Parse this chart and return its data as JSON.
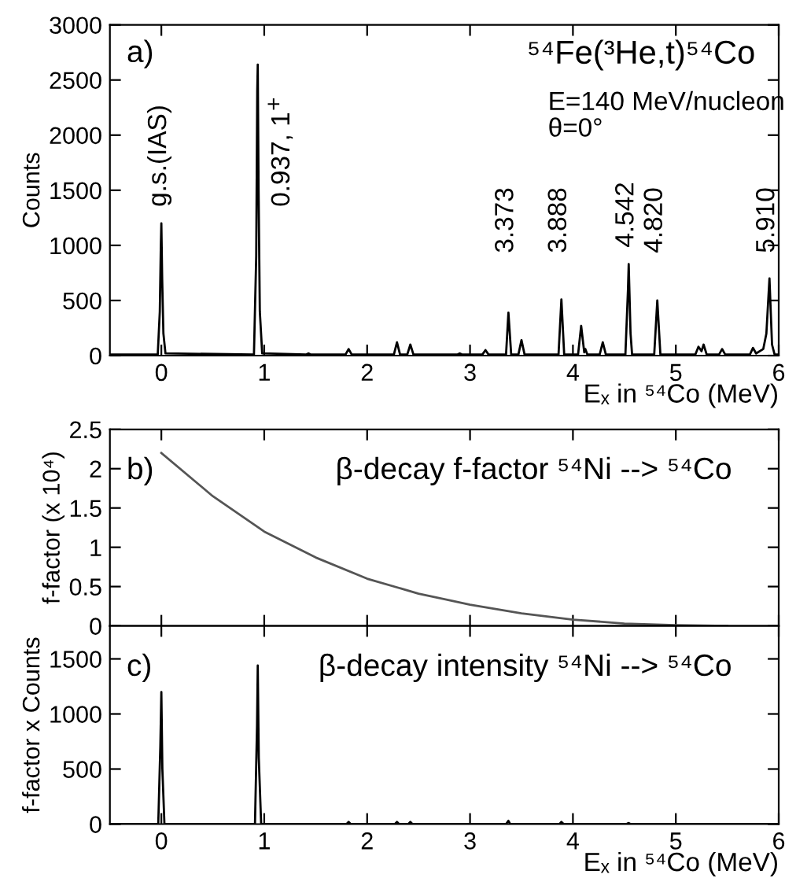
{
  "chart_data": [
    {
      "type": "line",
      "title": "⁵⁴Fe(³He,t)⁵⁴Co",
      "xlabel": "Eₓ in ⁵⁴Co (MeV)",
      "ylabel": "Counts",
      "annotations": [
        "a)",
        "E=140 MeV/nucleon",
        "θ=0°",
        {
          "text": "g.s.(IAS)",
          "x": 0,
          "y": 1200
        },
        {
          "text": "0.937, 1$^{+}$",
          "x": 0.937,
          "y": 2640
        },
        {
          "text": "3.373",
          "x": 3.373,
          "y": 390
        },
        {
          "text": "3.888",
          "x": 3.888,
          "y": 510
        },
        {
          "text": "4.542",
          "x": 4.542,
          "y": 830
        },
        {
          "text": "4.820",
          "x": 4.82,
          "y": 500
        },
        {
          "text": "5.910",
          "x": 5.91,
          "y": 700
        }
      ],
      "x": [
        -0.5,
        -0.035,
        -0.015,
        -0.005,
        0,
        0.008,
        0.02,
        0.04,
        0.9,
        0.922,
        0.932,
        0.937,
        0.945,
        0.957,
        0.98,
        1.41,
        1.43,
        1.45,
        1.79,
        1.82,
        1.85,
        2.26,
        2.29,
        2.32,
        2.39,
        2.42,
        2.45,
        2.88,
        2.9,
        2.92,
        3.12,
        3.15,
        3.18,
        3.35,
        3.373,
        3.4,
        3.47,
        3.5,
        3.53,
        3.86,
        3.888,
        3.915,
        4.05,
        4.08,
        4.11,
        4.12,
        4.14,
        4.26,
        4.29,
        4.32,
        4.51,
        4.535,
        4.542,
        4.56,
        4.575,
        4.79,
        4.82,
        4.85,
        5.19,
        5.22,
        5.25,
        5.27,
        5.3,
        5.42,
        5.45,
        5.48,
        5.72,
        5.75,
        5.78,
        5.85,
        5.88,
        5.91,
        5.935,
        5.96,
        6.0
      ],
      "series": [
        {
          "color": "#000000",
          "values": [
            10,
            10,
            400,
            1000,
            1200,
            700,
            200,
            20,
            10,
            900,
            2400,
            2640,
            1500,
            400,
            20,
            10,
            20,
            10,
            10,
            60,
            10,
            10,
            120,
            10,
            10,
            100,
            10,
            10,
            20,
            10,
            10,
            50,
            10,
            10,
            390,
            10,
            10,
            140,
            10,
            10,
            510,
            10,
            10,
            270,
            30,
            60,
            10,
            10,
            120,
            10,
            10,
            600,
            830,
            200,
            10,
            10,
            500,
            10,
            10,
            80,
            40,
            100,
            10,
            10,
            60,
            10,
            10,
            70,
            20,
            60,
            200,
            700,
            100,
            10,
            10
          ]
        }
      ],
      "xlim": [
        -0.5,
        6
      ],
      "xticks": [
        0,
        1,
        2,
        3,
        4,
        5,
        6
      ],
      "ylim": [
        0,
        3000
      ],
      "yticks": [
        0,
        500,
        1000,
        1500,
        2000,
        2500,
        3000
      ]
    },
    {
      "type": "line",
      "title": "β-decay f-factor ⁵⁴Ni --> ⁵⁴Co",
      "ylabel": "f-factor (x 10⁴)",
      "annotations": [
        "b)"
      ],
      "x": [
        0,
        0.5,
        1,
        1.5,
        2,
        2.5,
        3,
        3.5,
        4,
        4.5,
        5,
        5.5
      ],
      "series": [
        {
          "color": "#555555",
          "values": [
            2.2,
            1.65,
            1.2,
            0.87,
            0.6,
            0.41,
            0.27,
            0.16,
            0.08,
            0.03,
            0.01,
            0
          ]
        }
      ],
      "xlim": [
        -0.5,
        6
      ],
      "xticks": [
        0,
        1,
        2,
        3,
        4,
        5,
        6
      ],
      "ylim": [
        0,
        2.5
      ],
      "yticks": [
        0,
        0.5,
        1,
        1.5,
        2,
        2.5
      ],
      "tick_labels": "y"
    },
    {
      "type": "line",
      "title": "β-decay intensity ⁵⁴Ni --> ⁵⁴Co",
      "xlabel": "Eₓ in ⁵⁴Co (MeV)",
      "ylabel": "f-factor x Counts",
      "annotations": [
        "c)"
      ],
      "x": [
        -0.5,
        -0.03,
        -0.01,
        0,
        0.01,
        0.03,
        0.91,
        0.93,
        0.937,
        0.947,
        0.97,
        1.8,
        1.82,
        1.84,
        2.27,
        2.29,
        2.31,
        2.4,
        2.42,
        2.44,
        3.35,
        3.373,
        3.39,
        3.87,
        3.888,
        3.91,
        4.52,
        4.542,
        4.56,
        6.0
      ],
      "series": [
        {
          "color": "#000000",
          "values": [
            0,
            0,
            700,
            1200,
            500,
            0,
            0,
            900,
            1440,
            600,
            0,
            0,
            20,
            0,
            0,
            20,
            0,
            0,
            20,
            0,
            0,
            30,
            0,
            0,
            20,
            0,
            0,
            10,
            0,
            0
          ]
        }
      ],
      "xlim": [
        -0.5,
        6
      ],
      "xticks": [
        0,
        1,
        2,
        3,
        4,
        5,
        6
      ],
      "ylim": [
        0,
        1800
      ],
      "yticks": [
        0,
        500,
        1000,
        1500
      ]
    }
  ]
}
